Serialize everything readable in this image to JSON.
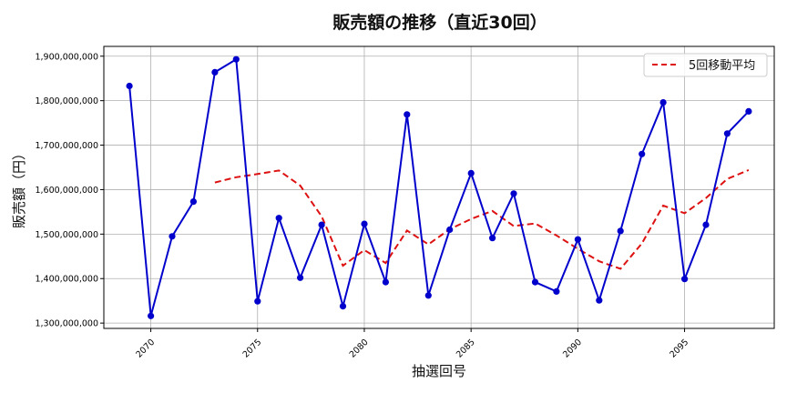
{
  "chart_data": {
    "type": "line",
    "title": "販売額の推移（直近30回）",
    "xlabel": "抽選回号",
    "ylabel": "販売額（円）",
    "xlim": [
      2067.8,
      2099.2
    ],
    "ylim": [
      1288000000,
      1922000000
    ],
    "x_ticks": [
      2070,
      2075,
      2080,
      2085,
      2090,
      2095
    ],
    "y_ticks": [
      1300000000,
      1400000000,
      1500000000,
      1600000000,
      1700000000,
      1800000000,
      1900000000
    ],
    "y_tick_labels": [
      "1,300,000,000",
      "1,400,000,000",
      "1,500,000,000",
      "1,600,000,000",
      "1,700,000,000",
      "1,800,000,000",
      "1,900,000,000"
    ],
    "grid": true,
    "legend_position": "top-right",
    "x": [
      2069,
      2070,
      2071,
      2072,
      2073,
      2074,
      2075,
      2076,
      2077,
      2078,
      2079,
      2080,
      2081,
      2082,
      2083,
      2084,
      2085,
      2086,
      2087,
      2088,
      2089,
      2090,
      2091,
      2092,
      2093,
      2094,
      2095,
      2096,
      2097,
      2098
    ],
    "series": [
      {
        "style": "solid-markers",
        "color": "#0000cc",
        "values": [
          1833000000,
          1316000000,
          1495000000,
          1573000000,
          1864000000,
          1893000000,
          1349000000,
          1536000000,
          1402000000,
          1521000000,
          1338000000,
          1523000000,
          1392000000,
          1769000000,
          1362000000,
          1510000000,
          1637000000,
          1491000000,
          1591000000,
          1392000000,
          1371000000,
          1488000000,
          1351000000,
          1507000000,
          1680000000,
          1796000000,
          1399000000,
          1521000000,
          1726000000,
          1776000000
        ]
      },
      {
        "name": "5回移動平均",
        "style": "dashed",
        "color": "#dd1111",
        "values": [
          null,
          null,
          null,
          null,
          1616000000,
          1628000000,
          1635000000,
          1643000000,
          1609000000,
          1540000000,
          1429000000,
          1464000000,
          1435000000,
          1508000000,
          1477000000,
          1511000000,
          1534000000,
          1552000000,
          1518000000,
          1524000000,
          1497000000,
          1467000000,
          1439000000,
          1422000000,
          1479000000,
          1564000000,
          1547000000,
          1581000000,
          1624000000,
          1644000000
        ]
      }
    ]
  }
}
